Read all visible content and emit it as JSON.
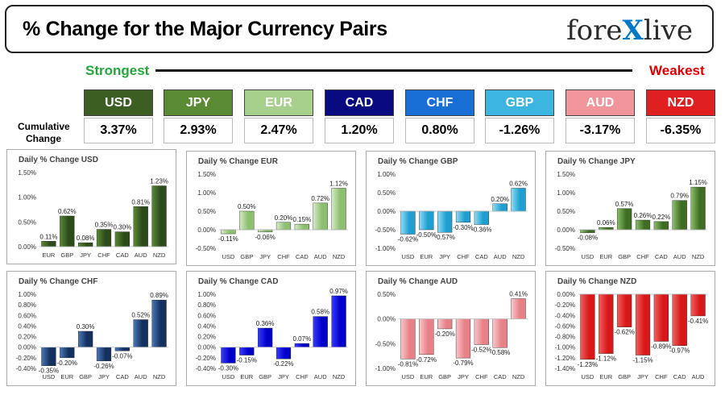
{
  "header": {
    "title": "% Change for the Major Currency Pairs",
    "logo_text_left": "fore",
    "logo_text_x": "X",
    "logo_text_right": "live"
  },
  "scale": {
    "strongest": "Strongest",
    "weakest": "Weakest"
  },
  "cumulative_label": "Cumulative Change",
  "currencies": [
    {
      "code": "USD",
      "value": "3.37%",
      "color": "#3c5e22"
    },
    {
      "code": "JPY",
      "value": "2.93%",
      "color": "#5b8a35"
    },
    {
      "code": "EUR",
      "value": "2.47%",
      "color": "#a8d08d"
    },
    {
      "code": "CAD",
      "value": "1.20%",
      "color": "#0a0a80"
    },
    {
      "code": "CHF",
      "value": "0.80%",
      "color": "#1a6fd6"
    },
    {
      "code": "GBP",
      "value": "-1.26%",
      "color": "#3cb6e0"
    },
    {
      "code": "AUD",
      "value": "-3.17%",
      "color": "#f2959a"
    },
    {
      "code": "NZD",
      "value": "-6.35%",
      "color": "#e02020"
    }
  ],
  "chart_data": [
    {
      "type": "bar",
      "title": "Daily % Change USD",
      "categories": [
        "EUR",
        "GBP",
        "JPY",
        "CHF",
        "CAD",
        "AUD",
        "NZD"
      ],
      "values": [
        0.11,
        0.62,
        0.08,
        0.35,
        0.3,
        0.81,
        1.23
      ],
      "labels": [
        "0.11%",
        "0.62%",
        "0.08%",
        "0.35%",
        "0.30%",
        "0.81%",
        "1.23%"
      ],
      "ylim": [
        0,
        1.5
      ],
      "ticks": [
        0,
        0.5,
        1.0,
        1.5
      ],
      "tick_labels": [
        "0.00%",
        "0.50%",
        "1.00%",
        "1.50%"
      ],
      "color": "#2d4a1a",
      "color_light": "#5b8a35"
    },
    {
      "type": "bar",
      "title": "Daily % Change EUR",
      "categories": [
        "USD",
        "GBP",
        "JPY",
        "CHF",
        "CAD",
        "AUD",
        "NZD"
      ],
      "values": [
        -0.11,
        0.5,
        -0.06,
        0.2,
        0.15,
        0.72,
        1.12
      ],
      "labels": [
        "-0.11%",
        "0.50%",
        "-0.06%",
        "0.20%",
        "0.15%",
        "0.72%",
        "1.12%"
      ],
      "ylim": [
        -0.5,
        1.5
      ],
      "ticks": [
        -0.5,
        0,
        0.5,
        1.0,
        1.5
      ],
      "tick_labels": [
        "-0.50%",
        "0.00%",
        "0.50%",
        "1.00%",
        "1.50%"
      ],
      "color": "#8cbf6e",
      "color_light": "#d7ebc8"
    },
    {
      "type": "bar",
      "title": "Daily % Change GBP",
      "categories": [
        "USD",
        "EUR",
        "JPY",
        "CHF",
        "CAD",
        "AUD",
        "NZD"
      ],
      "values": [
        -0.62,
        -0.5,
        -0.57,
        -0.3,
        -0.36,
        0.2,
        0.62
      ],
      "labels": [
        "-0.62%",
        "-0.50%",
        "-0.57%",
        "-0.30%",
        "-0.36%",
        "0.20%",
        "0.62%"
      ],
      "ylim": [
        -1.0,
        1.0
      ],
      "ticks": [
        -1.0,
        -0.5,
        0,
        0.5,
        1.0
      ],
      "tick_labels": [
        "-1.00%",
        "-0.50%",
        "0.00%",
        "0.50%",
        "1.00%"
      ],
      "color": "#1e9fd0",
      "color_light": "#8fdcf5"
    },
    {
      "type": "bar",
      "title": "Daily % Change JPY",
      "categories": [
        "USD",
        "EUR",
        "GBP",
        "CHF",
        "CAD",
        "AUD",
        "NZD"
      ],
      "values": [
        -0.08,
        0.06,
        0.57,
        0.26,
        0.22,
        0.79,
        1.15
      ],
      "labels": [
        "-0.08%",
        "0.06%",
        "0.57%",
        "0.26%",
        "0.22%",
        "0.79%",
        "1.15%"
      ],
      "ylim": [
        -0.5,
        1.5
      ],
      "ticks": [
        -0.5,
        0,
        0.5,
        1.0,
        1.5
      ],
      "tick_labels": [
        "-0.50%",
        "0.00%",
        "0.50%",
        "1.00%",
        "1.50%"
      ],
      "color": "#3f6e22",
      "color_light": "#8cbf6e"
    },
    {
      "type": "bar",
      "title": "Daily % Change CHF",
      "categories": [
        "USD",
        "EUR",
        "GBP",
        "JPY",
        "CAD",
        "AUD",
        "NZD"
      ],
      "values": [
        -0.35,
        -0.2,
        0.3,
        -0.26,
        -0.07,
        0.52,
        0.89
      ],
      "labels": [
        "-0.35%",
        "-0.20%",
        "0.30%",
        "-0.26%",
        "-0.07%",
        "0.52%",
        "0.89%"
      ],
      "ylim": [
        -0.4,
        1.0
      ],
      "ticks": [
        -0.4,
        -0.2,
        0,
        0.2,
        0.4,
        0.6,
        0.8,
        1.0
      ],
      "tick_labels": [
        "-0.40%",
        "-0.20%",
        "0.00%",
        "0.20%",
        "0.40%",
        "0.60%",
        "0.80%",
        "1.00%"
      ],
      "color": "#14305e",
      "color_light": "#4a78b8"
    },
    {
      "type": "bar",
      "title": "Daily % Change CAD",
      "categories": [
        "USD",
        "EUR",
        "GBP",
        "JPY",
        "CHF",
        "AUD",
        "NZD"
      ],
      "values": [
        -0.3,
        -0.15,
        0.36,
        -0.22,
        0.07,
        0.58,
        0.97
      ],
      "labels": [
        "-0.30%",
        "-0.15%",
        "0.36%",
        "-0.22%",
        "0.07%",
        "0.58%",
        "0.97%"
      ],
      "ylim": [
        -0.4,
        1.0
      ],
      "ticks": [
        -0.4,
        -0.2,
        0,
        0.2,
        0.4,
        0.6,
        0.8,
        1.0
      ],
      "tick_labels": [
        "-0.40%",
        "-0.20%",
        "0.00%",
        "0.20%",
        "0.40%",
        "0.60%",
        "0.80%",
        "1.00%"
      ],
      "color": "#0000c8",
      "color_light": "#3a3aff"
    },
    {
      "type": "bar",
      "title": "Daily % Change AUD",
      "categories": [
        "USD",
        "EUR",
        "GBP",
        "JPY",
        "CHF",
        "CAD",
        "NZD"
      ],
      "values": [
        -0.81,
        -0.72,
        -0.2,
        -0.79,
        -0.52,
        -0.58,
        0.41
      ],
      "labels": [
        "-0.81%",
        "-0.72%",
        "-0.20%",
        "-0.79%",
        "-0.52%",
        "-0.58%",
        "0.41%"
      ],
      "ylim": [
        -1.0,
        0.5
      ],
      "ticks": [
        -1.0,
        -0.5,
        0,
        0.5
      ],
      "tick_labels": [
        "-1.00%",
        "-0.50%",
        "0.00%",
        "0.50%"
      ],
      "color": "#e88088",
      "color_light": "#f8c8cc"
    },
    {
      "type": "bar",
      "title": "Daily % Change NZD",
      "categories": [
        "USD",
        "EUR",
        "GBP",
        "JPY",
        "CHF",
        "CAD",
        "AUD"
      ],
      "values": [
        -1.23,
        -1.12,
        -0.62,
        -1.15,
        -0.89,
        -0.97,
        -0.41
      ],
      "labels": [
        "-1.23%",
        "-1.12%",
        "-0.62%",
        "-1.15%",
        "-0.89%",
        "-0.97%",
        "-0.41%"
      ],
      "ylim": [
        -1.4,
        0
      ],
      "ticks": [
        -1.4,
        -1.2,
        -1.0,
        -0.8,
        -0.6,
        -0.4,
        -0.2,
        0
      ],
      "tick_labels": [
        "-1.40%",
        "-1.20%",
        "-1.00%",
        "-0.80%",
        "-0.60%",
        "-0.40%",
        "-0.20%",
        "0.00%"
      ],
      "color": "#d81818",
      "color_light": "#f06060"
    }
  ]
}
